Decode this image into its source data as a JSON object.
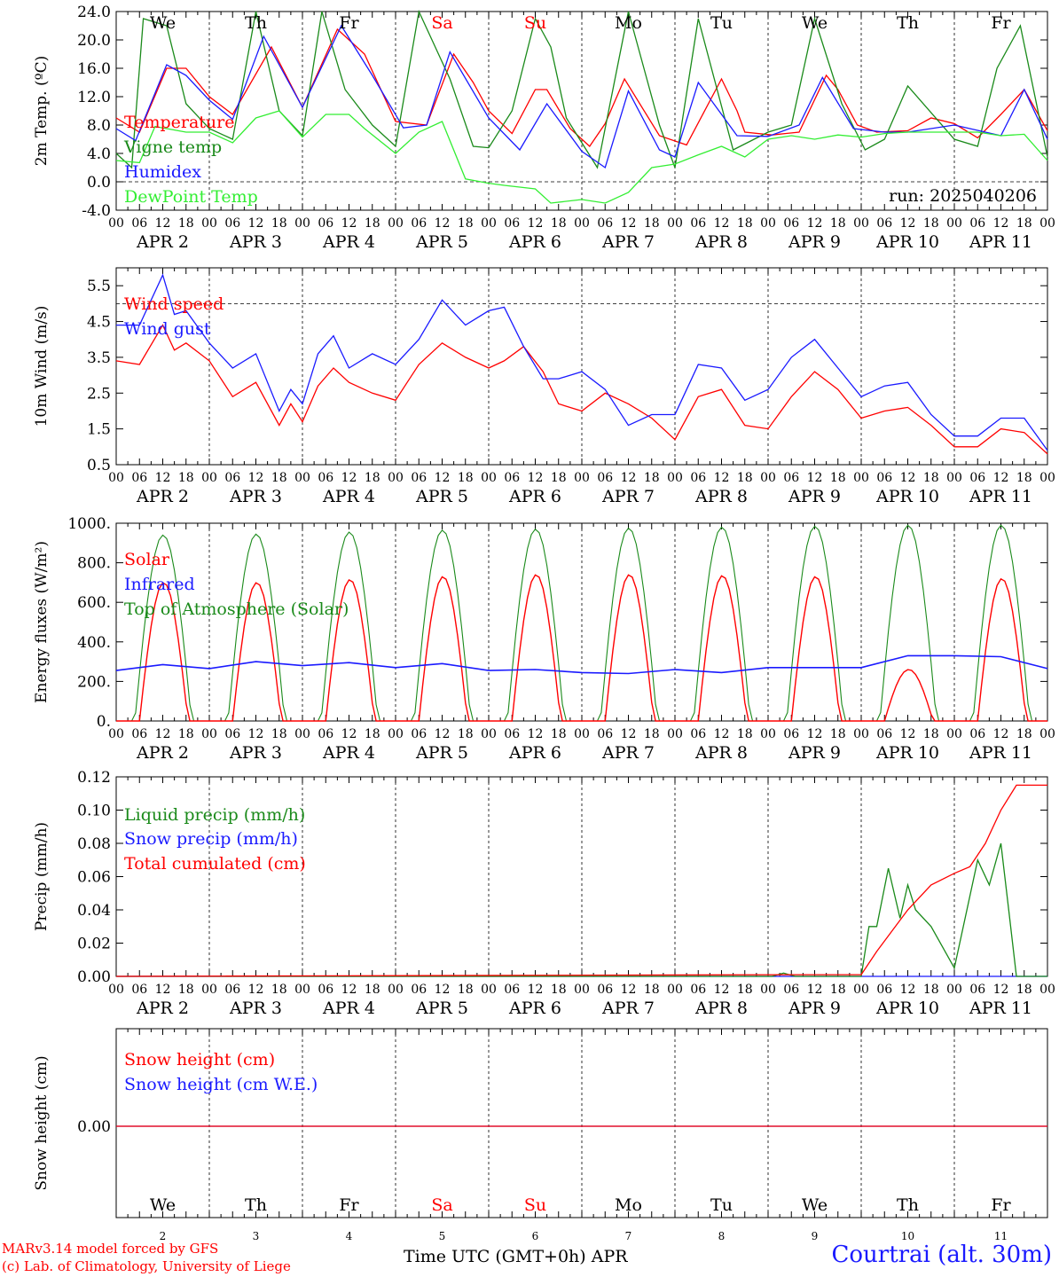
{
  "colors": {
    "red": "#ff0000",
    "darkgreen": "#1a8a1a",
    "lightgreen": "#33ee33",
    "blue": "#1a1aff",
    "grid": "#000000"
  },
  "days": [
    "We",
    "Th",
    "Fr",
    "Sa",
    "Su",
    "Mo",
    "Tu",
    "We",
    "Th",
    "Fr"
  ],
  "weekend_days": [
    "Sa",
    "Su"
  ],
  "dates": [
    "APR  2",
    "APR  3",
    "APR  4",
    "APR  5",
    "APR  6",
    "APR  7",
    "APR  8",
    "APR  9",
    "APR 10",
    "APR 11"
  ],
  "day_numbers": [
    "2",
    "3",
    "4",
    "5",
    "6",
    "7",
    "8",
    "9",
    "10",
    "11"
  ],
  "hour_ticks": [
    "00",
    "06",
    "12",
    "18"
  ],
  "footer": {
    "model": "MARv3.14 model forced by GFS",
    "lab": "(c) Lab. of Climatology, University of Liege",
    "axis_title": "Time UTC (GMT+0h) APR",
    "station": "Courtrai (alt. 30m)"
  },
  "chart_data": [
    {
      "type": "line",
      "ylabel": "2m Temp. (ºC)",
      "ylim": [
        -4,
        24
      ],
      "yticks": [
        "24.0",
        "20.0",
        "16.0",
        "12.0",
        "8.0",
        "4.0",
        "0.0",
        "-4.0"
      ],
      "ref_line": 0,
      "run_label": "run: 2025040206",
      "x_unit": "hours since APR 2 00 UTC",
      "series": [
        {
          "name": "Temperature",
          "color": "red",
          "x": [
            0,
            6,
            13,
            18,
            24,
            30,
            40,
            48,
            57,
            64,
            72,
            80,
            87,
            92,
            96,
            102,
            108,
            111,
            117,
            122,
            126,
            131,
            140,
            147,
            156,
            160,
            162,
            169,
            176,
            183,
            186,
            191,
            196,
            204,
            210,
            216,
            222,
            228,
            234,
            240
          ],
          "y": [
            9,
            7,
            16,
            16,
            12,
            9.5,
            19,
            10.5,
            21.5,
            18,
            8.5,
            8,
            18,
            14,
            10,
            6.8,
            13,
            13,
            7.5,
            5,
            8.2,
            14.5,
            6.5,
            5.2,
            14.5,
            10,
            7,
            6.6,
            7,
            15,
            13,
            8,
            7,
            7.2,
            9,
            8.2,
            6.2,
            9.5,
            13,
            7.2
          ]
        },
        {
          "name": "Vigne temp",
          "color": "darkgreen",
          "x": [
            0,
            4,
            7,
            13,
            18,
            24,
            30,
            36,
            42,
            48,
            53,
            59,
            66,
            72,
            78,
            86,
            92,
            96,
            102,
            108,
            112,
            116,
            124,
            132,
            136,
            140,
            144,
            150,
            159,
            168,
            174,
            180,
            187,
            193,
            198,
            204,
            216,
            222,
            227,
            233,
            240
          ],
          "y": [
            4,
            2,
            23,
            22,
            11,
            7.5,
            6,
            24,
            10,
            6.5,
            24,
            13,
            8,
            5,
            24,
            14.5,
            5,
            4.8,
            10,
            23,
            19,
            9,
            2,
            24,
            16,
            8,
            2,
            23,
            4.5,
            7,
            8,
            23,
            11,
            4.5,
            6,
            13.5,
            6,
            5,
            16,
            22,
            3.5
          ]
        },
        {
          "name": "Humidex",
          "color": "blue",
          "x": [
            0,
            5,
            13,
            18,
            24,
            30,
            38,
            48,
            58,
            66,
            74,
            80,
            86,
            96,
            104,
            111,
            120,
            126,
            132,
            140,
            144,
            150,
            160,
            168,
            176,
            182,
            190,
            198,
            204,
            216,
            228,
            234,
            240
          ],
          "y": [
            7.5,
            5.8,
            16.5,
            15,
            11.5,
            8.8,
            20.5,
            10.5,
            22,
            15,
            7.6,
            8,
            18.3,
            9,
            4.5,
            11,
            4.3,
            2,
            12.8,
            4.5,
            3.5,
            14,
            6.5,
            6.4,
            8,
            14.7,
            7.5,
            7,
            7,
            8,
            6.5,
            13,
            6
          ]
        },
        {
          "name": "DewPoint Temp",
          "color": "lightgreen",
          "x": [
            0,
            6,
            10,
            18,
            24,
            30,
            36,
            42,
            48,
            54,
            60,
            64,
            72,
            78,
            84,
            90,
            96,
            100,
            108,
            112,
            120,
            126,
            132,
            138,
            144,
            150,
            156,
            162,
            168,
            174,
            180,
            186,
            192,
            198,
            204,
            216,
            222,
            228,
            234,
            240
          ],
          "y": [
            3,
            2.7,
            7.8,
            7,
            7,
            5.5,
            9,
            10,
            6.3,
            9.5,
            9.5,
            7.5,
            4,
            7,
            8.5,
            0.4,
            -0.2,
            -0.5,
            -1,
            -3,
            -2.5,
            -3,
            -1.5,
            2,
            2.5,
            3.8,
            5,
            3.5,
            6,
            6.5,
            6,
            6.6,
            6.3,
            6.8,
            7,
            7,
            7,
            6.5,
            6.7,
            3
          ]
        }
      ]
    },
    {
      "type": "line",
      "ylabel": "10m Wind (m/s)",
      "ylim": [
        0.5,
        6
      ],
      "yticks": [
        "5.5",
        "4.5",
        "3.5",
        "2.5",
        "1.5",
        "0.5"
      ],
      "ref_line": 5,
      "x_unit": "hours since APR 2 00 UTC",
      "series": [
        {
          "name": "Wind speed",
          "color": "red",
          "x": [
            0,
            6,
            12,
            15,
            18,
            24,
            30,
            36,
            42,
            45,
            48,
            52,
            56,
            60,
            66,
            72,
            75,
            78,
            84,
            90,
            96,
            100,
            105,
            110,
            114,
            120,
            126,
            132,
            138,
            144,
            150,
            156,
            162,
            168,
            174,
            180,
            186,
            192,
            198,
            204,
            210,
            216,
            222,
            228,
            234,
            240
          ],
          "y": [
            3.4,
            3.3,
            4.4,
            3.7,
            3.9,
            3.4,
            2.4,
            2.8,
            1.6,
            2.2,
            1.7,
            2.7,
            3.2,
            2.8,
            2.5,
            2.3,
            2.8,
            3.3,
            3.9,
            3.5,
            3.2,
            3.4,
            3.8,
            3.1,
            2.2,
            2.0,
            2.5,
            2.2,
            1.8,
            1.2,
            2.4,
            2.6,
            1.6,
            1.5,
            2.4,
            3.1,
            2.6,
            1.8,
            2.0,
            2.1,
            1.6,
            1.0,
            1.0,
            1.5,
            1.4,
            0.8
          ]
        },
        {
          "name": "Wind gust",
          "color": "blue",
          "x": [
            0,
            6,
            12,
            15,
            18,
            24,
            30,
            36,
            42,
            45,
            48,
            52,
            56,
            60,
            66,
            72,
            78,
            84,
            90,
            96,
            100,
            105,
            110,
            114,
            120,
            126,
            132,
            138,
            144,
            150,
            156,
            162,
            168,
            174,
            180,
            186,
            192,
            198,
            204,
            210,
            216,
            222,
            228,
            234,
            240
          ],
          "y": [
            4.4,
            4.4,
            5.8,
            4.7,
            4.8,
            3.9,
            3.2,
            3.6,
            2.0,
            2.6,
            2.2,
            3.6,
            4.1,
            3.2,
            3.6,
            3.3,
            4.0,
            5.1,
            4.4,
            4.8,
            4.9,
            3.8,
            2.9,
            2.9,
            3.1,
            2.6,
            1.6,
            1.9,
            1.9,
            3.3,
            3.2,
            2.3,
            2.6,
            3.5,
            4.0,
            3.2,
            2.4,
            2.7,
            2.8,
            1.9,
            1.3,
            1.3,
            1.8,
            1.8,
            0.9
          ]
        }
      ]
    },
    {
      "type": "line",
      "ylabel": "Energy fluxes (W/m²)",
      "ylim": [
        0,
        1000
      ],
      "yticks": [
        "1000.",
        "800.",
        "600.",
        "400.",
        "200.",
        "0."
      ],
      "x_unit": "hours since APR 2 00 UTC",
      "series": [
        {
          "name": "Solar",
          "color": "red",
          "peaks": [
            700,
            700,
            715,
            730,
            740,
            740,
            735,
            730,
            260,
            720
          ]
        },
        {
          "name": "Infrared",
          "color": "blue",
          "x": [
            0,
            12,
            24,
            36,
            48,
            60,
            72,
            84,
            96,
            108,
            120,
            132,
            144,
            156,
            168,
            180,
            192,
            204,
            216,
            228,
            240
          ],
          "y": [
            255,
            285,
            265,
            300,
            280,
            295,
            270,
            290,
            255,
            260,
            245,
            240,
            260,
            245,
            270,
            270,
            270,
            330,
            330,
            325,
            265
          ]
        },
        {
          "name": "Top of Atmosphere (Solar)",
          "color": "darkgreen",
          "peaks": [
            940,
            945,
            955,
            965,
            970,
            975,
            980,
            985,
            990,
            990
          ]
        }
      ]
    },
    {
      "type": "line",
      "ylabel": "Precip (mm/h)",
      "ylim": [
        0,
        0.12
      ],
      "yticks": [
        "0.12",
        "0.10",
        "0.08",
        "0.06",
        "0.04",
        "0.02",
        "0.00"
      ],
      "x_unit": "hours since APR 2 00 UTC",
      "series": [
        {
          "name": "Liquid precip (mm/h)",
          "color": "darkgreen",
          "x": [
            0,
            169,
            172,
            175,
            192,
            194,
            196,
            199,
            202,
            204,
            206,
            210,
            216,
            222,
            225,
            228,
            230,
            232,
            236,
            240
          ],
          "y": [
            0,
            0,
            0.002,
            0,
            0,
            0.03,
            0.03,
            0.065,
            0.035,
            0.055,
            0.04,
            0.03,
            0.005,
            0.07,
            0.055,
            0.08,
            0.04,
            0,
            0,
            0
          ]
        },
        {
          "name": "Snow precip (mm/h)",
          "color": "blue",
          "x": [
            0,
            240
          ],
          "y": [
            0,
            0
          ]
        },
        {
          "name": "Total cumulated (cm)",
          "color": "red",
          "x": [
            0,
            175,
            192,
            196,
            204,
            210,
            216,
            220,
            224,
            228,
            232,
            240
          ],
          "y": [
            0,
            0.001,
            0.001,
            0.015,
            0.04,
            0.055,
            0.062,
            0.066,
            0.08,
            0.1,
            0.115,
            0.115
          ]
        }
      ]
    },
    {
      "type": "line",
      "ylabel": "Snow height (cm)",
      "yticks": [
        "0.00"
      ],
      "x_unit": "hours since APR 2 00 UTC",
      "series": [
        {
          "name": "Snow height (cm)",
          "color": "red",
          "x": [
            0,
            240
          ],
          "y": [
            0,
            0
          ]
        },
        {
          "name": "Snow height (cm W.E.)",
          "color": "blue",
          "x": [
            0,
            240
          ],
          "y": [
            0,
            0
          ]
        }
      ]
    }
  ]
}
